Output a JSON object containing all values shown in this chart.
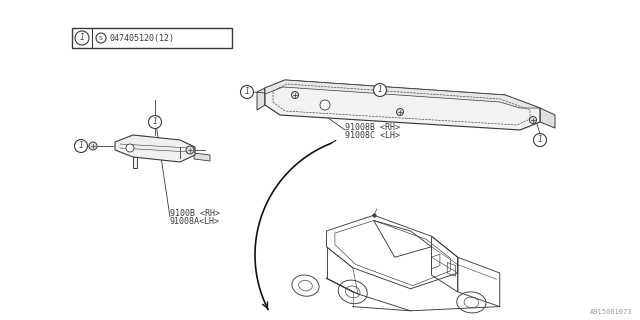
{
  "bg_color": "#ffffff",
  "line_color": "#3a3a3a",
  "text_color": "#3a3a3a",
  "label1": "9100B <RH>",
  "label1b": "91008A<LH>",
  "label2": "91008B <RH>",
  "label2b": "91008C <LH>",
  "part_num": "047405120(12)",
  "watermark": "A915001073",
  "fig_width": 6.4,
  "fig_height": 3.2,
  "dpi": 100
}
